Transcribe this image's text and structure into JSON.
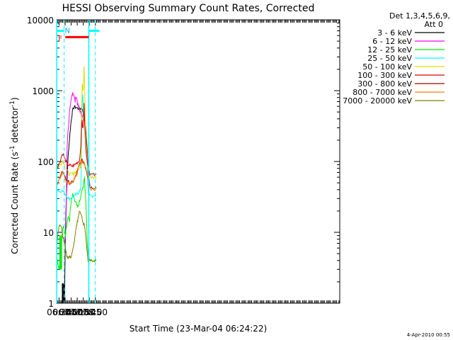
{
  "chart_data": {
    "type": "line",
    "title": "HESSI Observing Summary Count Rates, Corrected",
    "xlabel": "Start Time (23-Mar-04 06:24:22)",
    "ylabel_main": "Corrected Count Rate (s",
    "ylabel_sup1": "-1",
    "ylabel_mid": " detector",
    "ylabel_sup2": "-1",
    "ylabel_end": ")",
    "yscale": "log",
    "xlim": [
      384,
      1085
    ],
    "ylim": [
      1,
      10000
    ],
    "x_ticks": [
      {
        "v": 390,
        "label": "06:30"
      },
      {
        "v": 405,
        "label": "06:45"
      },
      {
        "v": 420,
        "label": "07:00"
      },
      {
        "v": 435,
        "label": "07:15"
      },
      {
        "v": 450,
        "label": "07:30"
      },
      {
        "v": 465,
        "label": "07:45"
      },
      {
        "v": 480,
        "label": "08:00"
      }
    ],
    "y_ticks": [
      {
        "v": 1,
        "label": "1"
      },
      {
        "v": 10,
        "label": "10"
      },
      {
        "v": 100,
        "label": "100"
      },
      {
        "v": 1000,
        "label": "1000"
      },
      {
        "v": 10000,
        "label": "10000"
      }
    ],
    "legend": {
      "header1": "Det 1,3,4,5,6,9,",
      "header2": "Att 0",
      "position": "right"
    },
    "series": [
      {
        "name": "3 - 6 keV",
        "color": "#000000",
        "x": [
          403.6,
          404.5,
          405.5,
          407,
          409,
          411,
          413,
          415,
          417,
          419,
          421,
          423,
          426,
          429,
          432,
          435,
          438,
          441,
          444,
          447,
          449,
          451,
          452,
          454,
          456,
          458,
          460,
          462,
          463.5
        ],
        "y": [
          1,
          3,
          8,
          20,
          40,
          80,
          130,
          180,
          250,
          330,
          420,
          500,
          580,
          590,
          580,
          570,
          560,
          560,
          560,
          550,
          520,
          460,
          420,
          380,
          300,
          200,
          140,
          75,
          45
        ]
      },
      {
        "name": "6 - 12 keV",
        "color": "#ff00ff",
        "x": [
          402.2,
          403.5,
          405,
          407,
          408,
          409,
          410,
          412,
          414,
          416,
          418,
          420,
          422,
          424,
          426,
          428,
          430,
          432,
          434,
          436,
          438,
          440,
          442,
          444,
          446,
          448,
          450,
          452,
          454,
          456,
          458,
          460,
          462,
          464,
          466,
          467
        ],
        "y": [
          7,
          7.5,
          8,
          12,
          25,
          80,
          160,
          260,
          350,
          480,
          600,
          730,
          860,
          950,
          910,
          800,
          700,
          840,
          780,
          650,
          600,
          560,
          520,
          480,
          430,
          420,
          450,
          400,
          320,
          230,
          160,
          110,
          75,
          60,
          50,
          45
        ]
      },
      {
        "name": "12 - 25 keV",
        "color": "#00ee00",
        "x": [
          384,
          386,
          388,
          390,
          392,
          394,
          396,
          397,
          400,
          402,
          404,
          406,
          408,
          410,
          412,
          414,
          416,
          418,
          420,
          422,
          424,
          426,
          428,
          430,
          432,
          434,
          436,
          438,
          440,
          442,
          444,
          446,
          448,
          450,
          451,
          452,
          453,
          454,
          456,
          458,
          460,
          462,
          463,
          464,
          466,
          470,
          475,
          480,
          482
        ],
        "y": [
          4.5,
          4.0,
          3.5,
          3.2,
          3.0,
          3.5,
          6.0,
          9.0,
          12,
          11,
          10,
          9,
          12,
          14,
          17,
          16,
          14,
          22,
          27,
          30,
          34,
          32,
          28,
          27,
          26,
          24,
          22,
          24,
          27,
          28,
          32,
          38,
          40,
          45,
          50,
          55,
          60,
          45,
          30,
          15,
          7,
          5,
          4.5,
          4.0,
          4.0,
          4.0,
          4.0,
          4.0,
          4.0
        ]
      },
      {
        "name": "25 - 50 keV",
        "color": "#00ffff",
        "x": [
          384,
          387,
          390,
          393,
          396,
          399,
          402,
          405,
          408,
          411,
          414,
          417,
          420,
          423,
          426,
          429,
          432,
          435,
          437,
          439,
          441,
          443,
          444,
          445,
          446,
          447,
          448,
          449,
          450,
          451,
          452,
          453,
          454,
          455,
          456,
          457,
          458,
          459,
          460,
          461,
          462,
          463,
          464,
          466,
          470,
          475,
          480,
          482
        ],
        "y": [
          40,
          40,
          38,
          38,
          39,
          38,
          37,
          35,
          33,
          31,
          30,
          30,
          31,
          31,
          32,
          33,
          34,
          35,
          36,
          37,
          38,
          40,
          45,
          80,
          200,
          600,
          900,
          800,
          500,
          480,
          450,
          420,
          400,
          300,
          200,
          150,
          120,
          100,
          80,
          50,
          40,
          36,
          34,
          33,
          33,
          33,
          34,
          33
        ]
      },
      {
        "name": "50 - 100 keV",
        "color": "#dddd00",
        "x": [
          384,
          387,
          390,
          393,
          396,
          399,
          402,
          405,
          408,
          411,
          414,
          417,
          420,
          423,
          426,
          429,
          432,
          435,
          438,
          441,
          443,
          444,
          445,
          446,
          447,
          448,
          449,
          450,
          451,
          452,
          453,
          454,
          455,
          456,
          457,
          458,
          459,
          460,
          462,
          464,
          466,
          470,
          475,
          480,
          482
        ],
        "y": [
          82,
          84,
          86,
          90,
          96,
          104,
          96,
          85,
          78,
          72,
          68,
          66,
          65,
          66,
          68,
          70,
          72,
          74,
          78,
          82,
          85,
          90,
          200,
          600,
          1000,
          1300,
          1050,
          1100,
          1500,
          2300,
          1400,
          700,
          350,
          250,
          200,
          160,
          120,
          100,
          80,
          70,
          62,
          60,
          60,
          60,
          60
        ]
      },
      {
        "name": "100 - 300 keV",
        "color": "#dd0000",
        "x": [
          384,
          387,
          390,
          393,
          396,
          399,
          402,
          405,
          408,
          411,
          414,
          417,
          420,
          423,
          426,
          429,
          432,
          435,
          438,
          441,
          444,
          446,
          447,
          448,
          449,
          450,
          451,
          452,
          453,
          454,
          455,
          456,
          458,
          460,
          462,
          464,
          466,
          470,
          475,
          480,
          482
        ],
        "y": [
          88,
          88,
          92,
          102,
          118,
          130,
          118,
          106,
          98,
          92,
          90,
          88,
          86,
          86,
          88,
          90,
          94,
          97,
          100,
          105,
          180,
          350,
          400,
          310,
          300,
          310,
          450,
          650,
          400,
          300,
          220,
          170,
          120,
          100,
          90,
          80,
          68,
          65,
          65,
          65,
          65
        ]
      },
      {
        "name": "300 - 800 keV",
        "color": "#a00000",
        "x": [
          384,
          387,
          390,
          393,
          396,
          399,
          402,
          405,
          408,
          411,
          414,
          417,
          420,
          423,
          426,
          429,
          432,
          435,
          438,
          441,
          444,
          447,
          450,
          453,
          456,
          459,
          462,
          464,
          466,
          470,
          475,
          480,
          482
        ],
        "y": [
          50,
          52,
          56,
          60,
          66,
          72,
          68,
          60,
          55,
          52,
          51,
          50,
          50,
          51,
          54,
          58,
          64,
          72,
          82,
          92,
          100,
          102,
          100,
          95,
          82,
          68,
          58,
          50,
          45,
          43,
          43,
          43,
          43
        ]
      },
      {
        "name": "800 - 7000 keV",
        "color": "#ff8000",
        "x": [
          384,
          387,
          390,
          393,
          396,
          399,
          402,
          405,
          408,
          411,
          414,
          417,
          420,
          423,
          426,
          429,
          432,
          435,
          438,
          441,
          444,
          447,
          450,
          453,
          456,
          459,
          462,
          464,
          466,
          470,
          475,
          480,
          482
        ],
        "y": [
          48,
          50,
          54,
          58,
          64,
          70,
          66,
          58,
          53,
          50,
          49,
          48,
          48,
          49,
          52,
          56,
          62,
          70,
          80,
          90,
          98,
          100,
          98,
          92,
          80,
          66,
          56,
          48,
          43,
          41,
          41,
          41,
          41
        ]
      },
      {
        "name": "7000 - 20000 keV",
        "color": "#808000",
        "x": [
          384,
          386,
          388,
          390,
          392,
          394,
          396,
          398,
          400,
          402,
          404,
          406,
          408,
          410,
          412,
          414,
          416,
          418,
          420,
          422,
          424,
          426,
          428,
          430,
          432,
          434,
          436,
          438,
          440,
          442,
          444,
          446,
          448,
          450,
          452,
          454,
          456,
          458,
          460,
          462,
          464,
          466,
          470,
          475,
          480,
          482
        ],
        "y": [
          6.5,
          8.0,
          10,
          12,
          13,
          13,
          12,
          10,
          8.5,
          7.5,
          7.0,
          6.0,
          5.0,
          4.5,
          4.5,
          4.5,
          4.5,
          4.5,
          4.5,
          5.0,
          5.5,
          6.5,
          7.5,
          9.0,
          11,
          13,
          15,
          17,
          19,
          20,
          19,
          17,
          14,
          13,
          13,
          11,
          9,
          6.5,
          5.0,
          4.0,
          4.0,
          4.0,
          4.0,
          4.0,
          4.0,
          4.0
        ]
      }
    ],
    "attenuator_bars": [
      {
        "x0": 380,
        "x1": 402.5,
        "y": 7000,
        "color": "#00ffff"
      },
      {
        "x0": 464.5,
        "x1": 490,
        "y": 7000,
        "color": "#00ffff"
      }
    ],
    "flare_bar": {
      "x0": 405.5,
      "x1": 463.5,
      "y": 5700,
      "color": "#ff0000",
      "label": "F"
    },
    "night_marker": {
      "x": 404.2,
      "y": 7200,
      "label": "N",
      "color": "#00aaff"
    },
    "dashed_verticals": [
      {
        "x": 402.5,
        "color": "#00ffff"
      },
      {
        "x": 464.2,
        "color": "#00ffff"
      },
      {
        "x": 479.6,
        "color": "#00ffff"
      }
    ],
    "solid_verticals": [
      {
        "x": 384.3,
        "color": "#00ffff"
      },
      {
        "x": 463.6,
        "color": "#00ffff"
      }
    ],
    "early_black_spikes": {
      "x": [
        398.4,
        399.1,
        399.8,
        400.5,
        401.2,
        401.9,
        402.6
      ],
      "y_low": 1,
      "y_high": 1.9,
      "color": "#000000"
    },
    "green_spikes": {
      "x": [
        391.5,
        392.5,
        393.5,
        394.5,
        395.5,
        396.5
      ],
      "y_low": 3.0,
      "y_high": 9.0,
      "color": "#00ee00"
    },
    "grid": false
  },
  "footer": {
    "date_stamp": "4-Apr-2010 00:55"
  }
}
